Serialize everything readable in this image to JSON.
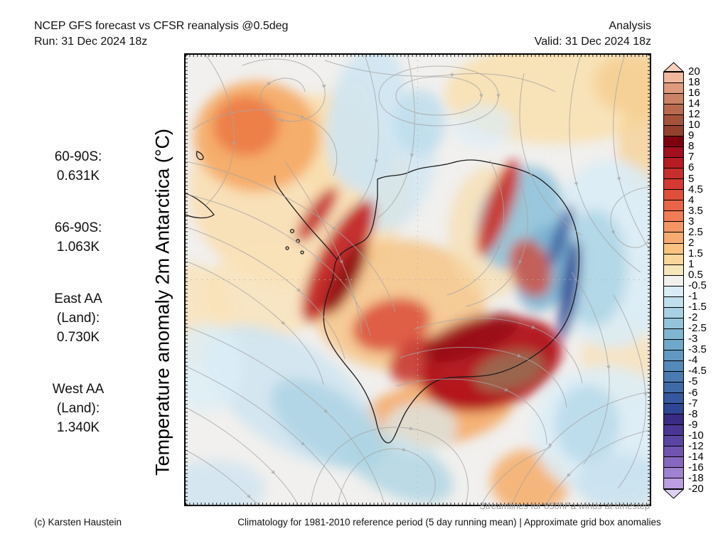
{
  "header": {
    "title": "NCEP GFS forecast vs CFSR reanalysis @0.5deg",
    "run": "Run: 31 Dec 2024 18z",
    "mode": "Analysis",
    "valid": "Valid: 31 Dec 2024 18z"
  },
  "stats": {
    "items": [
      {
        "lines": [
          "60-90S:",
          "0.631K"
        ]
      },
      {
        "lines": [
          "66-90S:",
          "1.063K"
        ]
      },
      {
        "lines": [
          "East AA",
          "(Land):",
          "0.730K"
        ]
      },
      {
        "lines": [
          "West AA",
          "(Land):",
          "1.340K"
        ]
      }
    ]
  },
  "axis_label": "Temperature anomaly 2m Antarctica (°C)",
  "colorbar": {
    "labels": [
      "20",
      "18",
      "16",
      "14",
      "12",
      "10",
      "9",
      "8",
      "7",
      "6",
      "5",
      "4.5",
      "4",
      "3.5",
      "3",
      "2.5",
      "2",
      "1.5",
      "1",
      "0.5",
      "-0.5",
      "-1",
      "-1.5",
      "-2",
      "-2.5",
      "-3",
      "-3.5",
      "-4",
      "-4.5",
      "-5",
      "-6",
      "-7",
      "-8",
      "-9",
      "-10",
      "-12",
      "-14",
      "-16",
      "-18",
      "-20"
    ],
    "colors": [
      "#f0b79d",
      "#dd9a7c",
      "#cc8265",
      "#b96a4e",
      "#a5523a",
      "#93402c",
      "#7f000d",
      "#a30f1c",
      "#b71c23",
      "#c62f2b",
      "#d43a30",
      "#e04f3a",
      "#e96448",
      "#f07d55",
      "#f49663",
      "#f7ab70",
      "#fac380",
      "#fad698",
      "#f6e7ba",
      "#f2f1ef",
      "#d9ebf4",
      "#c0dfed",
      "#a8d2e4",
      "#93c4da",
      "#81b6d2",
      "#70a8ca",
      "#6199c2",
      "#548aba",
      "#497bb1",
      "#3f6aa8",
      "#36589e",
      "#2e4694",
      "#3a2b84",
      "#4a3694",
      "#5a46a2",
      "#7054b0",
      "#8668c0",
      "#9f82d0",
      "#bb9fe0"
    ],
    "arrow_top_color": "#f8cfb8",
    "arrow_bottom_color": "#ded2f0"
  },
  "footer": {
    "streamline_note": "Streamlines for 850hPa winds at timestep",
    "copyright": "(c) Karsten Haustein",
    "caption": "Climatology for 1981-2010 reference period (5 day running mean) | Approximate grid box anomalies"
  },
  "chart_data": {
    "type": "heatmap",
    "title": "NCEP GFS forecast vs CFSR reanalysis @0.5deg",
    "subtitle": "Temperature anomaly 2m Antarctica (°C) — Analysis, Valid 31 Dec 2024 18z",
    "projection": "south polar stereographic, Antarctica centered",
    "overlay": "streamlines of 850hPa winds, gray with arrowheads",
    "colorbar_boundaries": [
      20,
      18,
      16,
      14,
      12,
      10,
      9,
      8,
      7,
      6,
      5,
      4.5,
      4,
      3.5,
      3,
      2.5,
      2,
      1.5,
      1,
      0.5,
      -0.5,
      -1,
      -1.5,
      -2,
      -2.5,
      -3,
      -3.5,
      -4,
      -4.5,
      -5,
      -6,
      -7,
      -8,
      -9,
      -10,
      -12,
      -14,
      -16,
      -18,
      -20
    ],
    "units": "°C anomaly vs 1981-2010 climatology",
    "regional_means_K": {
      "60-90S": 0.631,
      "66-90S": 1.063,
      "East_AA_Land": 0.73,
      "West_AA_Land": 1.34
    },
    "notable_features": [
      "strong warm anomaly (+6 to +16) over Wilkes Land / East Antarctic coast sector, brown core",
      "strong warm band (+4 to +9) along Antarctic Peninsula and West Antarctica",
      "cold anomalies (-2 to -8) over interior East Antarctica near coast",
      "warm blob over ocean at upper left, pale warm band top right",
      "weak cool anomalies (-0.5 to -3) over surrounding Southern Ocean bands"
    ]
  }
}
